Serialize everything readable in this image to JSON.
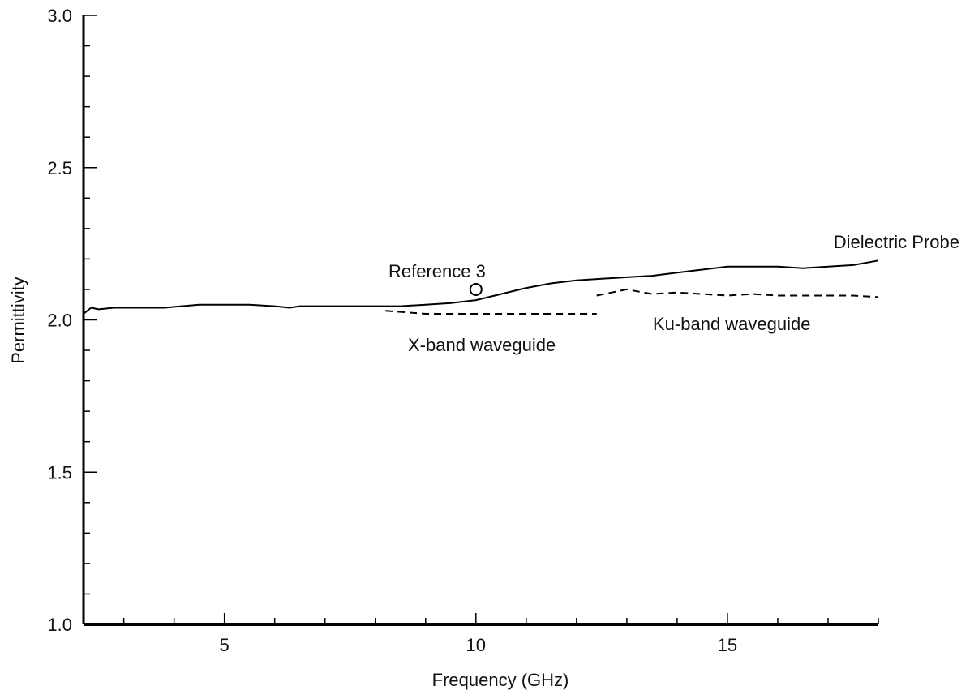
{
  "chart_data": {
    "type": "line",
    "xlabel": "Frequency (GHz)",
    "ylabel": "Permittivity",
    "xlim": [
      2.2,
      18.0
    ],
    "ylim": [
      1.0,
      3.0
    ],
    "x_ticks": [
      5,
      10,
      15
    ],
    "y_ticks": [
      1.0,
      1.5,
      2.0,
      2.5,
      3.0
    ],
    "x_tick_labels": [
      "5",
      "10",
      "15"
    ],
    "y_tick_labels": [
      "1.0",
      "1.5",
      "2.0",
      "2.5",
      "3.0"
    ],
    "grid": false,
    "series": [
      {
        "name": "Dielectric Probe",
        "style": "solid",
        "color": "#000000",
        "x": [
          2.2,
          2.35,
          2.5,
          2.8,
          3.2,
          3.8,
          4.5,
          5.0,
          5.5,
          6.0,
          6.3,
          6.5,
          7.0,
          7.5,
          8.0,
          8.5,
          9.0,
          9.5,
          10.0,
          10.5,
          11.0,
          11.5,
          12.0,
          12.5,
          13.0,
          13.5,
          14.0,
          14.5,
          15.0,
          15.5,
          16.0,
          16.5,
          17.0,
          17.5,
          18.0
        ],
        "y": [
          2.02,
          2.04,
          2.035,
          2.04,
          2.04,
          2.04,
          2.05,
          2.05,
          2.05,
          2.045,
          2.04,
          2.045,
          2.045,
          2.045,
          2.045,
          2.045,
          2.05,
          2.055,
          2.065,
          2.085,
          2.105,
          2.12,
          2.13,
          2.135,
          2.14,
          2.145,
          2.155,
          2.165,
          2.175,
          2.175,
          2.175,
          2.17,
          2.175,
          2.18,
          2.195
        ]
      },
      {
        "name": "X-band waveguide",
        "style": "dashed",
        "color": "#000000",
        "x": [
          8.2,
          8.6,
          9.0,
          9.5,
          10.0,
          10.5,
          11.0,
          11.5,
          12.0,
          12.4
        ],
        "y": [
          2.03,
          2.025,
          2.02,
          2.02,
          2.02,
          2.02,
          2.02,
          2.02,
          2.02,
          2.02
        ]
      },
      {
        "name": "Ku-band waveguide",
        "style": "dashed",
        "color": "#000000",
        "x": [
          12.4,
          12.7,
          13.0,
          13.5,
          14.0,
          14.5,
          15.0,
          15.5,
          16.0,
          16.5,
          17.0,
          17.5,
          18.0
        ],
        "y": [
          2.08,
          2.09,
          2.1,
          2.085,
          2.09,
          2.085,
          2.08,
          2.085,
          2.08,
          2.08,
          2.08,
          2.08,
          2.075
        ]
      }
    ],
    "points": [
      {
        "name": "Reference 3",
        "x": 10.0,
        "y": 2.1,
        "marker": "open-circle"
      }
    ],
    "annotations": {
      "dielectric_probe": "Dielectric Probe",
      "reference_3": "Reference 3",
      "x_band": "X-band waveguide",
      "ku_band": "Ku-band waveguide"
    }
  }
}
